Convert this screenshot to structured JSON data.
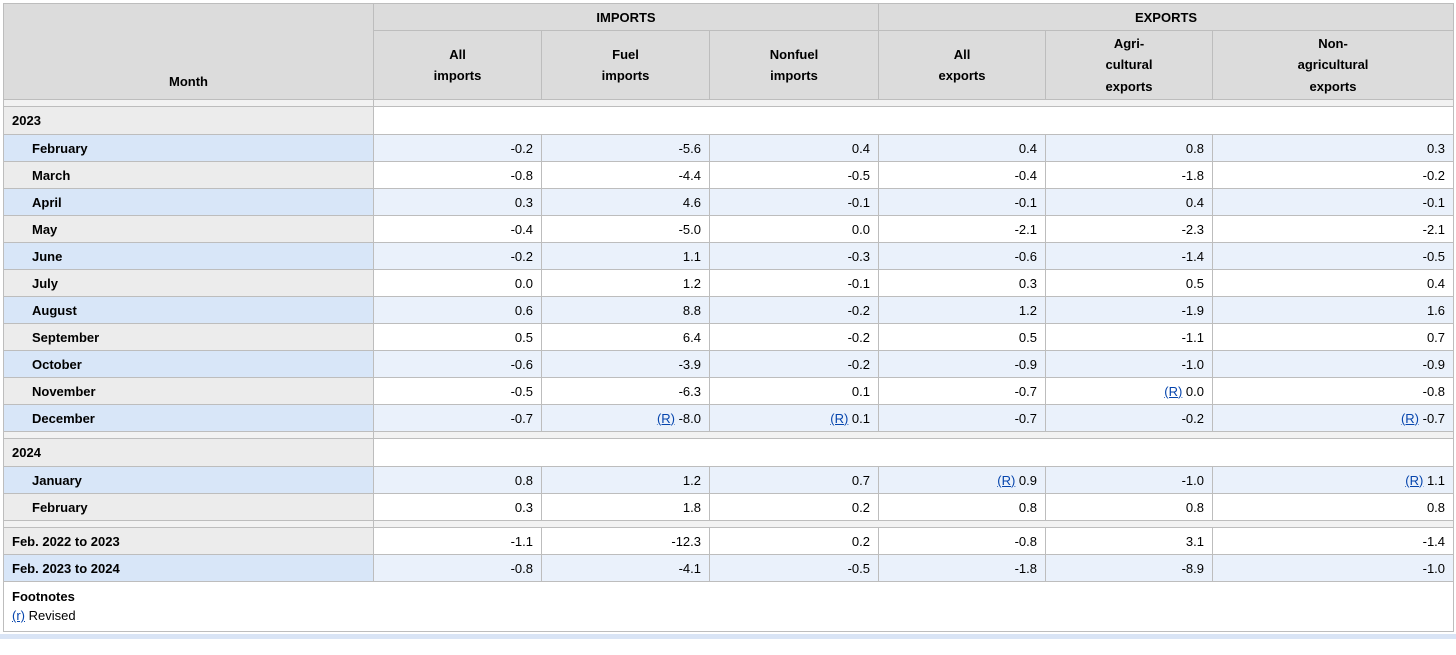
{
  "colors": {
    "link_blue": "#0645ad",
    "header_bg": "#dcdcdc",
    "row_blue_label": "#d8e6f8",
    "row_blue_value": "#eaf1fb",
    "row_gray_label": "#ececec",
    "bottom_strip": "#d9e4f5"
  },
  "revised_marker": "(R)",
  "header": {
    "month_label": "Month",
    "groups": [
      {
        "label": "IMPORTS"
      },
      {
        "label": "EXPORTS"
      }
    ],
    "sub_headers": [
      {
        "text": "All\nimports"
      },
      {
        "text": "Fuel\nimports"
      },
      {
        "text": "Nonfuel\nimports"
      },
      {
        "text": "All\nexports"
      },
      {
        "text": "Agri-\ncultural\nexports"
      },
      {
        "text": "Non-\nagricultural\nexports"
      }
    ]
  },
  "sections": [
    {
      "year": "2023",
      "rows": [
        {
          "month": "February",
          "values": [
            {
              "v": "-0.2"
            },
            {
              "v": "-5.6"
            },
            {
              "v": "0.4"
            },
            {
              "v": "0.4"
            },
            {
              "v": "0.8"
            },
            {
              "v": "0.3"
            }
          ]
        },
        {
          "month": "March",
          "values": [
            {
              "v": "-0.8"
            },
            {
              "v": "-4.4"
            },
            {
              "v": "-0.5"
            },
            {
              "v": "-0.4"
            },
            {
              "v": "-1.8"
            },
            {
              "v": "-0.2"
            }
          ]
        },
        {
          "month": "April",
          "values": [
            {
              "v": "0.3"
            },
            {
              "v": "4.6"
            },
            {
              "v": "-0.1"
            },
            {
              "v": "-0.1"
            },
            {
              "v": "0.4"
            },
            {
              "v": "-0.1"
            }
          ]
        },
        {
          "month": "May",
          "values": [
            {
              "v": "-0.4"
            },
            {
              "v": "-5.0"
            },
            {
              "v": "0.0"
            },
            {
              "v": "-2.1"
            },
            {
              "v": "-2.3"
            },
            {
              "v": "-2.1"
            }
          ]
        },
        {
          "month": "June",
          "values": [
            {
              "v": "-0.2"
            },
            {
              "v": "1.1"
            },
            {
              "v": "-0.3"
            },
            {
              "v": "-0.6"
            },
            {
              "v": "-1.4"
            },
            {
              "v": "-0.5"
            }
          ]
        },
        {
          "month": "July",
          "values": [
            {
              "v": "0.0"
            },
            {
              "v": "1.2"
            },
            {
              "v": "-0.1"
            },
            {
              "v": "0.3"
            },
            {
              "v": "0.5"
            },
            {
              "v": "0.4"
            }
          ]
        },
        {
          "month": "August",
          "values": [
            {
              "v": "0.6"
            },
            {
              "v": "8.8"
            },
            {
              "v": "-0.2"
            },
            {
              "v": "1.2"
            },
            {
              "v": "-1.9"
            },
            {
              "v": "1.6"
            }
          ]
        },
        {
          "month": "September",
          "values": [
            {
              "v": "0.5"
            },
            {
              "v": "6.4"
            },
            {
              "v": "-0.2"
            },
            {
              "v": "0.5"
            },
            {
              "v": "-1.1"
            },
            {
              "v": "0.7"
            }
          ]
        },
        {
          "month": "October",
          "values": [
            {
              "v": "-0.6"
            },
            {
              "v": "-3.9"
            },
            {
              "v": "-0.2"
            },
            {
              "v": "-0.9"
            },
            {
              "v": "-1.0"
            },
            {
              "v": "-0.9"
            }
          ]
        },
        {
          "month": "November",
          "values": [
            {
              "v": "-0.5"
            },
            {
              "v": "-6.3"
            },
            {
              "v": "0.1"
            },
            {
              "v": "-0.7"
            },
            {
              "v": "0.0",
              "revised": true
            },
            {
              "v": "-0.8"
            }
          ]
        },
        {
          "month": "December",
          "values": [
            {
              "v": "-0.7"
            },
            {
              "v": "-8.0",
              "revised": true
            },
            {
              "v": "0.1",
              "revised": true
            },
            {
              "v": "-0.7"
            },
            {
              "v": "-0.2"
            },
            {
              "v": "-0.7",
              "revised": true
            }
          ]
        }
      ]
    },
    {
      "year": "2024",
      "rows": [
        {
          "month": "January",
          "values": [
            {
              "v": "0.8"
            },
            {
              "v": "1.2"
            },
            {
              "v": "0.7"
            },
            {
              "v": "0.9",
              "revised": true
            },
            {
              "v": "-1.0"
            },
            {
              "v": "1.1",
              "revised": true
            }
          ]
        },
        {
          "month": "February",
          "values": [
            {
              "v": "0.3"
            },
            {
              "v": "1.8"
            },
            {
              "v": "0.2"
            },
            {
              "v": "0.8"
            },
            {
              "v": "0.8"
            },
            {
              "v": "0.8"
            }
          ]
        }
      ]
    }
  ],
  "summary_rows": [
    {
      "label": "Feb. 2022 to 2023",
      "values": [
        {
          "v": "-1.1"
        },
        {
          "v": "-12.3"
        },
        {
          "v": "0.2"
        },
        {
          "v": "-0.8"
        },
        {
          "v": "3.1"
        },
        {
          "v": "-1.4"
        }
      ]
    },
    {
      "label": "Feb. 2023 to 2024",
      "values": [
        {
          "v": "-0.8"
        },
        {
          "v": "-4.1"
        },
        {
          "v": "-0.5"
        },
        {
          "v": "-1.8"
        },
        {
          "v": "-8.9"
        },
        {
          "v": "-1.0"
        }
      ]
    }
  ],
  "footnotes": {
    "title": "Footnotes",
    "link_label": "(r)",
    "text": "Revised"
  }
}
